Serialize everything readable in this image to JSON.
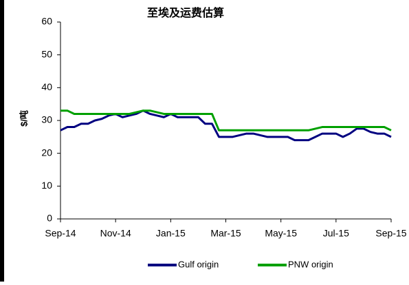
{
  "chart_data": {
    "type": "line",
    "title": "至埃及运费估算",
    "y_label": "$/吨",
    "x": [
      0,
      0.25,
      0.5,
      0.75,
      1,
      1.25,
      1.5,
      1.75,
      2,
      2.25,
      2.5,
      2.75,
      3,
      3.25,
      3.5,
      3.75,
      4,
      4.25,
      4.5,
      4.75,
      5,
      5.25,
      5.5,
      5.75,
      6,
      6.25,
      6.5,
      6.75,
      7,
      7.25,
      7.5,
      7.75,
      8,
      8.25,
      8.5,
      8.75,
      9,
      9.25,
      9.5,
      9.75,
      10,
      10.25,
      10.5,
      10.75,
      11,
      11.25,
      11.5,
      11.75,
      12
    ],
    "series": [
      {
        "name": "Gulf origin",
        "color": "#000080",
        "values": [
          27,
          28,
          28,
          29,
          29,
          30,
          30.5,
          31.5,
          32,
          31,
          31.5,
          32,
          33,
          32,
          31.5,
          31,
          32,
          31,
          31,
          31,
          31,
          29,
          29,
          25,
          25,
          25,
          25.5,
          26,
          26,
          25.5,
          25,
          25,
          25,
          25,
          24,
          24,
          24,
          25,
          26,
          26,
          26,
          25,
          26,
          27.5,
          27.5,
          26.5,
          26,
          26,
          25
        ]
      },
      {
        "name": "PNW origin",
        "color": "#00a000",
        "values": [
          33,
          33,
          32,
          32,
          32,
          32,
          32,
          32,
          32,
          32,
          32,
          32.5,
          33,
          33,
          32.5,
          32,
          32,
          32,
          32,
          32,
          32,
          32,
          32,
          27,
          27,
          27,
          27,
          27,
          27,
          27,
          27,
          27,
          27,
          27,
          27,
          27,
          27,
          27.5,
          28,
          28,
          28,
          28,
          28,
          28,
          28,
          28,
          28,
          28,
          27
        ]
      }
    ],
    "xlim": [
      0,
      12
    ],
    "xticks": [
      {
        "value": 0,
        "label": "Sep-14"
      },
      {
        "value": 2,
        "label": "Nov-14"
      },
      {
        "value": 4,
        "label": "Jan-15"
      },
      {
        "value": 6,
        "label": "Mar-15"
      },
      {
        "value": 8,
        "label": "May-15"
      },
      {
        "value": 10,
        "label": "Jul-15"
      },
      {
        "value": 12,
        "label": "Sep-15"
      }
    ],
    "ylim": [
      0,
      60
    ],
    "yticks": [
      0,
      10,
      20,
      30,
      40,
      50,
      60
    ],
    "grid": false,
    "legend": "bottom"
  }
}
